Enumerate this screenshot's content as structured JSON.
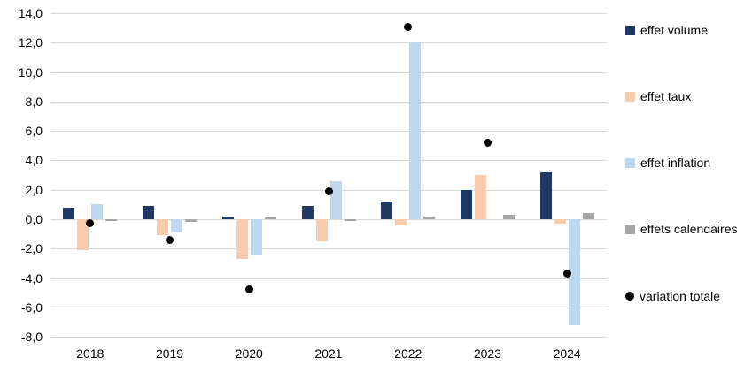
{
  "chart_data": {
    "type": "bar",
    "title": "",
    "xlabel": "",
    "ylabel": "",
    "categories": [
      "2018",
      "2019",
      "2020",
      "2021",
      "2022",
      "2023",
      "2024"
    ],
    "series": [
      {
        "name": "effet volume",
        "color": "#1f3864",
        "values": [
          0.8,
          0.9,
          0.2,
          0.9,
          1.2,
          2.0,
          3.2
        ]
      },
      {
        "name": "effet taux",
        "color": "#f8cbad",
        "values": [
          -2.1,
          -1.1,
          -2.7,
          -1.5,
          -0.4,
          3.0,
          -0.3
        ]
      },
      {
        "name": "effet inflation",
        "color": "#bdd7ee",
        "values": [
          1.0,
          -0.9,
          -2.4,
          2.6,
          12.0,
          0.0,
          -7.2
        ]
      },
      {
        "name": "effets calendaires",
        "color": "#a6a6a6",
        "values": [
          -0.1,
          -0.2,
          0.1,
          -0.1,
          0.2,
          0.3,
          0.4
        ]
      }
    ],
    "points": {
      "name": "variation totale",
      "color": "#000000",
      "values": [
        -0.3,
        -1.4,
        -4.8,
        1.9,
        13.1,
        5.2,
        -3.7
      ]
    },
    "ylim": [
      -8,
      14
    ],
    "yticks": [
      {
        "value": 14,
        "label": "14,0"
      },
      {
        "value": 12,
        "label": "12,0"
      },
      {
        "value": 10,
        "label": "10,0"
      },
      {
        "value": 8,
        "label": "8,0"
      },
      {
        "value": 6,
        "label": "6,0"
      },
      {
        "value": 4,
        "label": "4,0"
      },
      {
        "value": 2,
        "label": "2,0"
      },
      {
        "value": 0,
        "label": "0,0"
      },
      {
        "value": -2,
        "label": "-2,0"
      },
      {
        "value": -4,
        "label": "-4,0"
      },
      {
        "value": -6,
        "label": "-6,0"
      },
      {
        "value": -8,
        "label": "-8,0"
      }
    ],
    "grid": true,
    "legend_position": "right"
  },
  "legend": {
    "items": [
      {
        "label": "effet volume",
        "color": "#1f3864",
        "marker": "square"
      },
      {
        "label": "effet taux",
        "color": "#f8cbad",
        "marker": "square"
      },
      {
        "label": "effet inflation",
        "color": "#bdd7ee",
        "marker": "square"
      },
      {
        "label": "effets calendaires",
        "color": "#a6a6a6",
        "marker": "square"
      },
      {
        "label": "variation totale",
        "color": "#000000",
        "marker": "circle"
      }
    ]
  }
}
